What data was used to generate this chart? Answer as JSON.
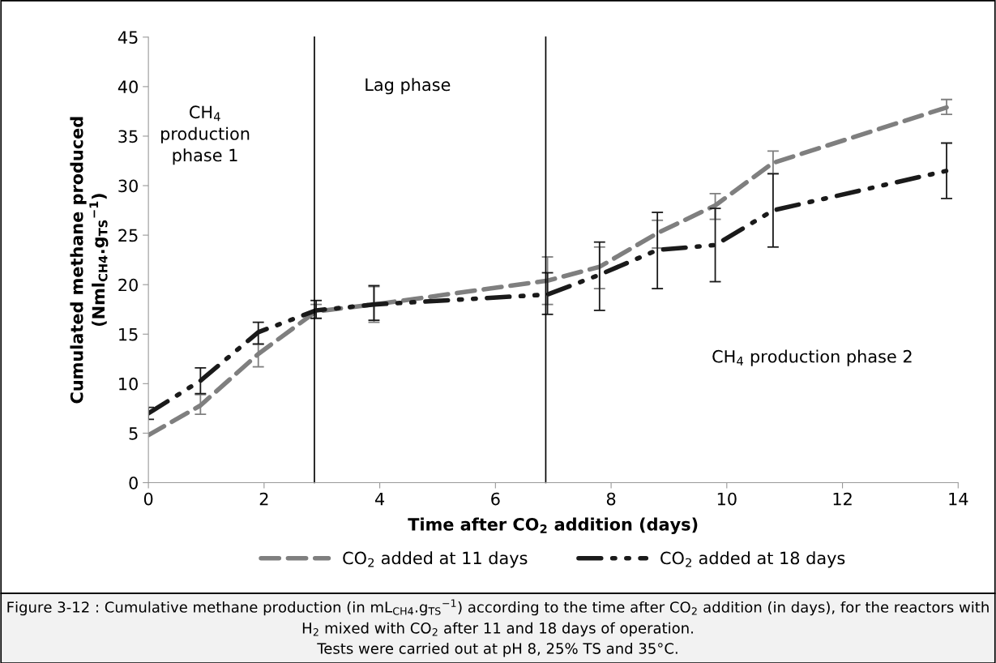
{
  "chart_data": {
    "type": "line",
    "xlabel": "Time after CO$_{2}$ addition (days)",
    "ylabel": "Cumulated methane produced\n(Nml$_{CH4}$.g$_{TS}$$^{−1}$)",
    "xlim": [
      0,
      14
    ],
    "xticks": [
      0,
      2,
      4,
      6,
      8,
      10,
      12,
      14
    ],
    "ylim": [
      0,
      45
    ],
    "yticks": [
      0,
      5,
      10,
      15,
      20,
      25,
      30,
      35,
      40,
      45
    ],
    "grid": false,
    "legend": "bottom",
    "marker": "none",
    "series": [
      {
        "name": "CO$_{2}$ added at 11 days",
        "color": "#7f7f7f",
        "line_style": "dashed",
        "x": [
          0,
          0.9,
          1.9,
          2.9,
          3.9,
          6.9,
          7.8,
          8.8,
          9.8,
          10.8,
          13.8
        ],
        "values": [
          4.8,
          7.8,
          13.0,
          17.3,
          18.0,
          20.4,
          21.8,
          25.2,
          28.0,
          32.3,
          37.9
        ],
        "errors": [
          null,
          [
            6.9,
            8.9
          ],
          [
            11.7,
            14.0
          ],
          [
            16.6,
            18.0
          ],
          [
            16.2,
            19.8
          ],
          [
            18.0,
            22.8
          ],
          [
            19.6,
            23.8
          ],
          [
            23.7,
            26.5
          ],
          [
            26.6,
            29.2
          ],
          [
            31.2,
            33.5
          ],
          [
            37.2,
            38.7
          ]
        ]
      },
      {
        "name": "CO$_{2}$ added at 18 days",
        "color": "#1a1a1a",
        "line_style": "dashdot",
        "x": [
          0,
          0.9,
          1.9,
          2.9,
          3.9,
          6.9,
          7.8,
          8.8,
          9.8,
          10.8,
          13.8
        ],
        "values": [
          7.0,
          10.3,
          15.2,
          17.4,
          18.0,
          19.0,
          21.0,
          23.5,
          24.0,
          27.5,
          31.5
        ],
        "errors": [
          [
            6.4,
            7.6
          ],
          [
            9.0,
            11.6
          ],
          [
            14.0,
            16.2
          ],
          [
            16.6,
            18.4
          ],
          [
            16.4,
            19.9
          ],
          [
            17.0,
            21.2
          ],
          [
            17.4,
            24.3
          ],
          [
            19.6,
            27.3
          ],
          [
            20.3,
            27.7
          ],
          [
            23.8,
            31.2
          ],
          [
            28.7,
            34.3
          ]
        ]
      }
    ],
    "ref_lines": [
      {
        "axis": "x",
        "value": 2.87,
        "color": "#000000"
      },
      {
        "axis": "x",
        "value": 6.87,
        "color": "#000000"
      }
    ],
    "annotations": [
      "CH$_{4}$\nproduction\nphase 1",
      "Lag phase",
      "CH$_{4}$ production phase 2",
      "Figure 3-12 : Cumulative methane production (in mL$_{CH4}$.g$_{TS}$$^{−1}$) according to the time after CO$_{2}$ addition (in days), for the reactors with H$_{2}$ mixed with CO$_{2}$ after 11 and 18 days of operation.",
      "Tests were carried out at pH 8, 25% TS and 35°C."
    ]
  }
}
